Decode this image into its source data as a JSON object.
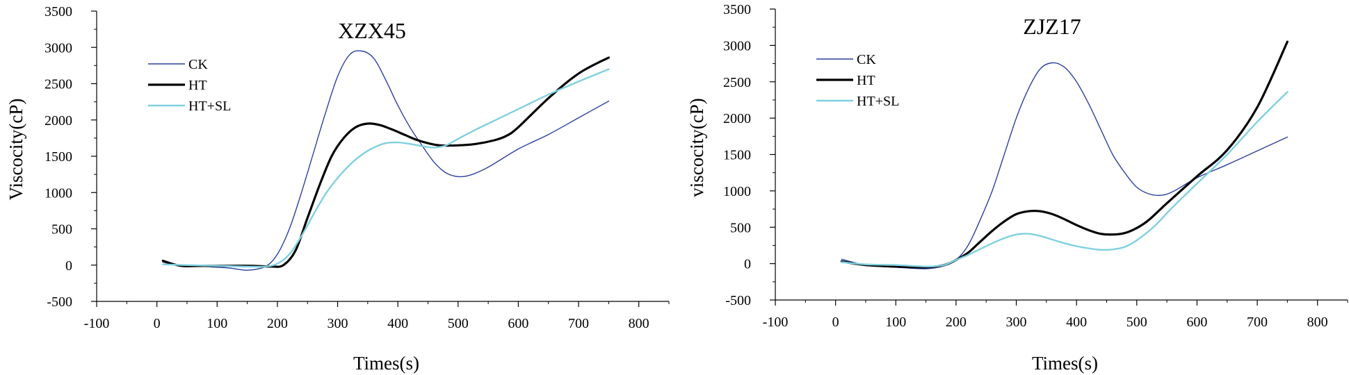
{
  "figure": {
    "description_colors": {
      "CK": "#2b3f9e",
      "HT": "#000000",
      "HT+SL": "#7fd0e0"
    }
  },
  "chart_data": [
    {
      "type": "line",
      "title": "XZX45",
      "xlabel": "Times(s)",
      "ylabel": "Viscocity(cP)",
      "xlim": [
        -100,
        850
      ],
      "ylim": [
        -500,
        3500
      ],
      "xticks": [
        -100,
        0,
        100,
        200,
        300,
        400,
        500,
        600,
        700,
        800
      ],
      "yticks": [
        -500,
        0,
        500,
        1000,
        1500,
        2000,
        2500,
        3000,
        3500
      ],
      "legend_position": "top-left",
      "series": [
        {
          "name": "CK",
          "color": "#2b3f9e",
          "width": "thin",
          "x": [
            10,
            40,
            80,
            120,
            150,
            180,
            200,
            220,
            240,
            260,
            280,
            300,
            320,
            340,
            360,
            380,
            400,
            420,
            440,
            460,
            480,
            500,
            520,
            550,
            600,
            650,
            700,
            750
          ],
          "y": [
            40,
            -10,
            -20,
            -40,
            -70,
            -20,
            150,
            500,
            1000,
            1550,
            2100,
            2600,
            2900,
            2950,
            2850,
            2550,
            2200,
            1900,
            1650,
            1420,
            1270,
            1220,
            1240,
            1350,
            1600,
            1800,
            2030,
            2260
          ]
        },
        {
          "name": "HT",
          "color": "#000000",
          "width": "thick",
          "x": [
            10,
            40,
            80,
            120,
            160,
            190,
            210,
            230,
            250,
            270,
            290,
            310,
            330,
            350,
            370,
            390,
            410,
            430,
            450,
            470,
            500,
            530,
            560,
            580,
            600,
            650,
            700,
            750
          ],
          "y": [
            60,
            -10,
            -10,
            -10,
            -10,
            -20,
            0,
            200,
            650,
            1100,
            1500,
            1750,
            1900,
            1950,
            1930,
            1870,
            1800,
            1730,
            1680,
            1650,
            1650,
            1670,
            1720,
            1780,
            1900,
            2300,
            2640,
            2860
          ]
        },
        {
          "name": "HT+SL",
          "color": "#7fd0e0",
          "width": "medium",
          "x": [
            10,
            50,
            100,
            150,
            180,
            200,
            220,
            240,
            260,
            280,
            300,
            320,
            340,
            360,
            380,
            400,
            420,
            440,
            460,
            480,
            500,
            530,
            560,
            600,
            650,
            700,
            750
          ],
          "y": [
            10,
            0,
            -10,
            -20,
            -20,
            20,
            150,
            400,
            700,
            980,
            1200,
            1380,
            1520,
            1620,
            1680,
            1690,
            1670,
            1640,
            1620,
            1650,
            1740,
            1870,
            1990,
            2150,
            2350,
            2530,
            2700
          ]
        }
      ]
    },
    {
      "type": "line",
      "title": "ZJZ17",
      "xlabel": "Times(s)",
      "ylabel": "viscocity(cP)",
      "xlim": [
        -100,
        850
      ],
      "ylim": [
        -500,
        3500
      ],
      "xticks": [
        -100,
        0,
        100,
        200,
        300,
        400,
        500,
        600,
        700,
        800
      ],
      "yticks": [
        -500,
        0,
        500,
        1000,
        1500,
        2000,
        2500,
        3000,
        3500
      ],
      "legend_position": "top-left",
      "series": [
        {
          "name": "CK",
          "color": "#2b3f9e",
          "width": "thin",
          "x": [
            10,
            50,
            100,
            150,
            180,
            200,
            220,
            240,
            260,
            280,
            300,
            320,
            340,
            360,
            380,
            400,
            420,
            440,
            460,
            480,
            500,
            520,
            540,
            560,
            600,
            650,
            700,
            750
          ],
          "y": [
            60,
            -20,
            -50,
            -70,
            -30,
            50,
            250,
            600,
            1000,
            1500,
            2000,
            2400,
            2680,
            2760,
            2700,
            2500,
            2200,
            1850,
            1500,
            1250,
            1050,
            960,
            940,
            990,
            1180,
            1360,
            1550,
            1740
          ]
        },
        {
          "name": "HT",
          "color": "#000000",
          "width": "thick",
          "x": [
            10,
            50,
            100,
            150,
            180,
            200,
            220,
            240,
            260,
            280,
            300,
            320,
            340,
            360,
            380,
            400,
            420,
            440,
            460,
            480,
            500,
            520,
            550,
            600,
            650,
            700,
            750
          ],
          "y": [
            30,
            -20,
            -40,
            -50,
            -20,
            50,
            150,
            300,
            450,
            580,
            680,
            720,
            720,
            680,
            610,
            530,
            460,
            410,
            400,
            420,
            490,
            600,
            830,
            1200,
            1560,
            2150,
            3050
          ]
        },
        {
          "name": "HT+SL",
          "color": "#7fd0e0",
          "width": "medium",
          "x": [
            10,
            50,
            100,
            150,
            180,
            200,
            220,
            240,
            260,
            280,
            300,
            320,
            340,
            360,
            380,
            400,
            420,
            440,
            460,
            480,
            500,
            530,
            560,
            600,
            650,
            700,
            750
          ],
          "y": [
            20,
            -10,
            -20,
            -40,
            -20,
            50,
            120,
            200,
            280,
            350,
            400,
            410,
            380,
            330,
            280,
            240,
            210,
            190,
            195,
            230,
            320,
            520,
            780,
            1100,
            1500,
            1950,
            2360
          ]
        }
      ]
    }
  ]
}
